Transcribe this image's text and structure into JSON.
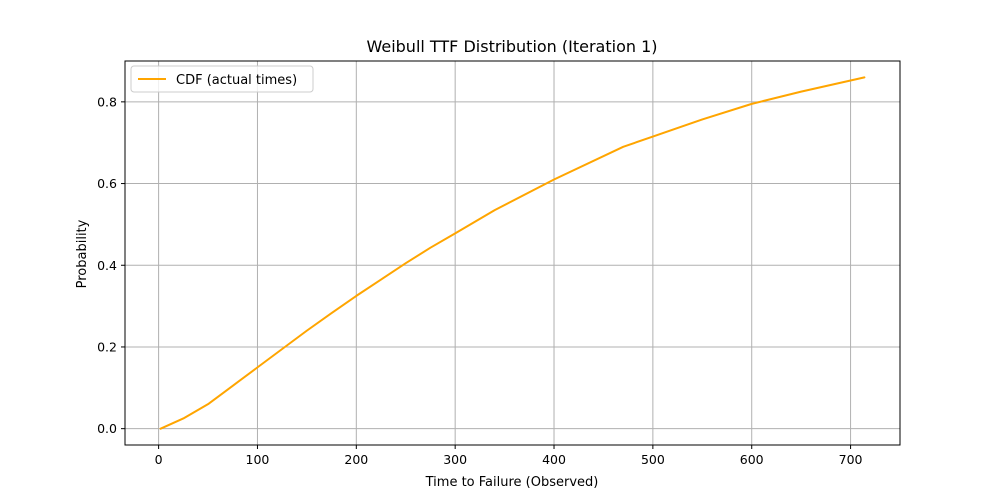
{
  "chart_data": {
    "type": "line",
    "title": "Weibull TTF Distribution (Iteration 1)",
    "xlabel": "Time to Failure (Observed)",
    "ylabel": "Probability",
    "xlim": [
      -34,
      750
    ],
    "ylim": [
      -0.04,
      0.9
    ],
    "xticks": [
      0,
      100,
      200,
      300,
      400,
      500,
      600,
      700
    ],
    "yticks": [
      0.0,
      0.2,
      0.4,
      0.6,
      0.8
    ],
    "xtick_labels": [
      "0",
      "100",
      "200",
      "300",
      "400",
      "500",
      "600",
      "700"
    ],
    "ytick_labels": [
      "0.0",
      "0.2",
      "0.4",
      "0.6",
      "0.8"
    ],
    "grid": true,
    "legend_position": "top-left",
    "series": [
      {
        "name": "CDF (actual times)",
        "color": "#ffa500",
        "x": [
          2,
          25,
          50,
          75,
          100,
          125,
          150,
          175,
          200,
          225,
          250,
          275,
          300,
          340,
          400,
          470,
          500,
          550,
          600,
          650,
          714
        ],
        "y": [
          0.0,
          0.025,
          0.06,
          0.105,
          0.15,
          0.195,
          0.24,
          0.283,
          0.325,
          0.365,
          0.405,
          0.443,
          0.478,
          0.535,
          0.61,
          0.69,
          0.715,
          0.757,
          0.795,
          0.825,
          0.86
        ]
      }
    ]
  }
}
